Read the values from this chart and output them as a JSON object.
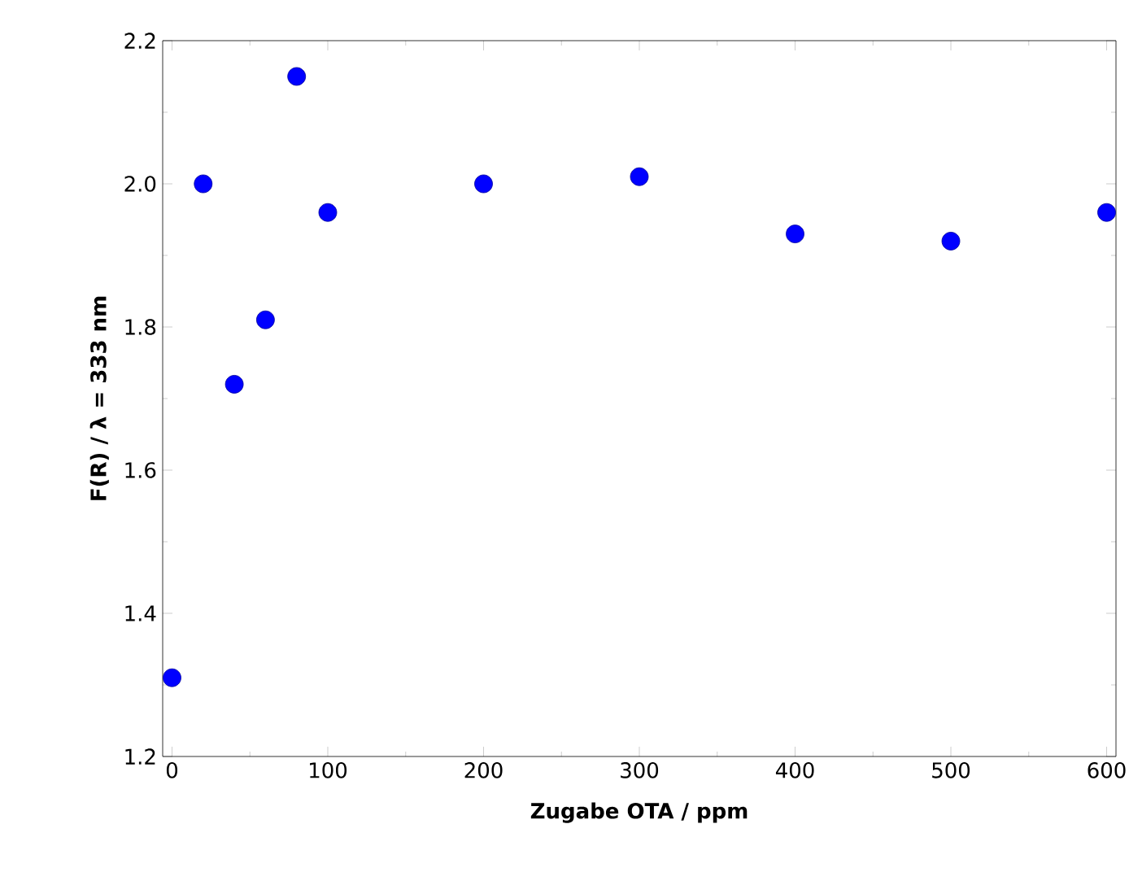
{
  "chart_data": {
    "type": "scatter",
    "xlabel": "Zugabe OTA / ppm",
    "ylabel": "F(R) / λ = 333 nm",
    "x": [
      0,
      20,
      40,
      60,
      80,
      100,
      200,
      300,
      400,
      500,
      600
    ],
    "series": [
      {
        "color": "#0000ff",
        "values": [
          1.31,
          2.0,
          1.72,
          1.81,
          2.15,
          1.96,
          2.0,
          2.01,
          1.93,
          1.92,
          1.96
        ]
      }
    ],
    "xlim": [
      -6,
      606
    ],
    "ylim": [
      1.2,
      2.2
    ],
    "xticks": [
      0,
      100,
      200,
      300,
      400,
      500,
      600
    ],
    "yticks": [
      {
        "value": 1.2,
        "label": "1.2"
      },
      {
        "value": 1.4,
        "label": "1.4"
      },
      {
        "value": 1.6,
        "label": "1.6"
      },
      {
        "value": 1.8,
        "label": "1.8"
      },
      {
        "value": 2.0,
        "label": "2.0"
      },
      {
        "value": 2.2,
        "label": "2.2"
      }
    ],
    "marker": "circle",
    "grid": false
  }
}
